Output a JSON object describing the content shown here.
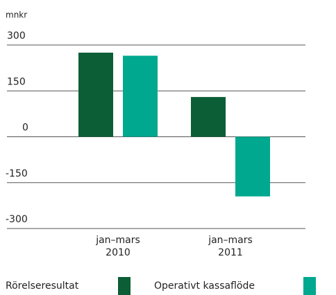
{
  "chart_data": {
    "type": "bar",
    "y_label": "mnkr",
    "categories": [
      "jan–mars 2010",
      "jan–mars 2011"
    ],
    "series": [
      {
        "name": "Rörelseresultat",
        "color": "#0b5e35",
        "values": [
          275,
          130
        ]
      },
      {
        "name": "Operativt kassaflöde",
        "color": "#00a88f",
        "values": [
          265,
          -195
        ]
      }
    ],
    "ylim": [
      -300,
      300
    ],
    "yticks": [
      -300,
      -150,
      0,
      150,
      300
    ],
    "grid": true
  }
}
